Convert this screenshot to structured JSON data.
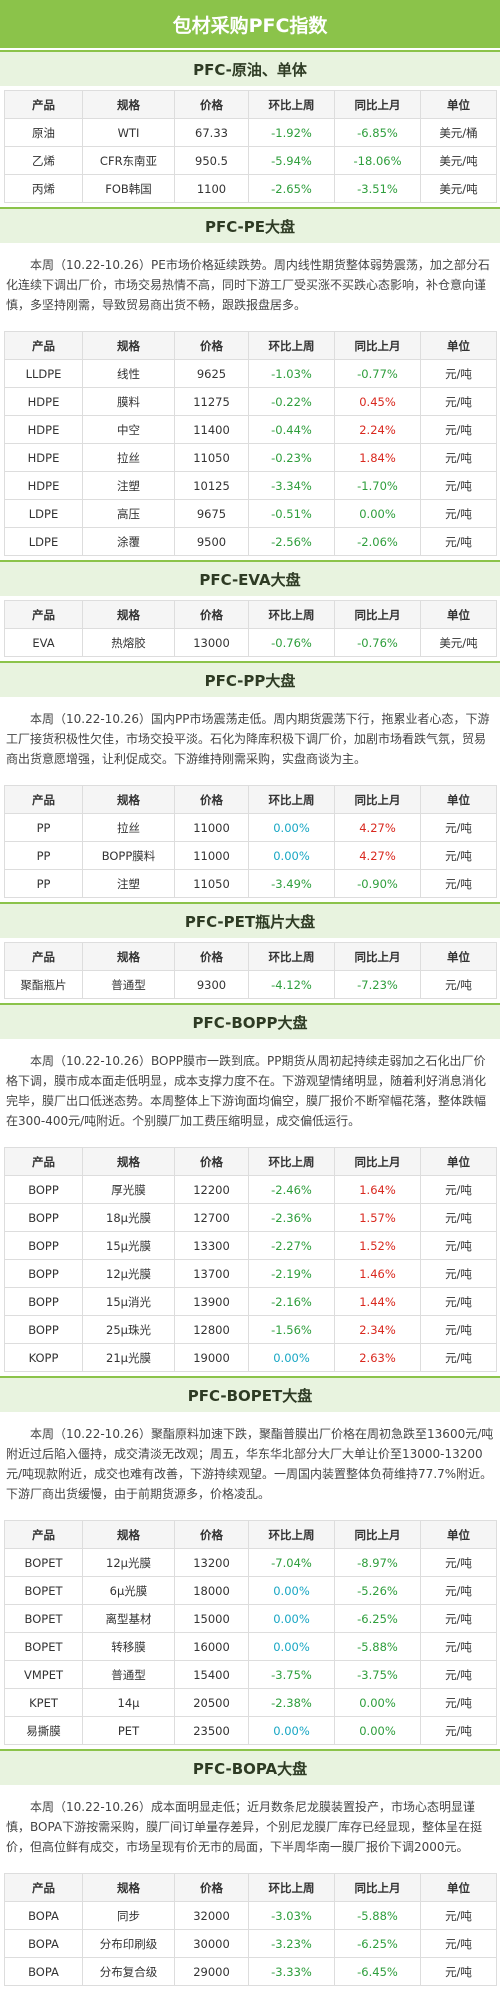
{
  "header": {
    "title": "包材采购PFC指数"
  },
  "table_columns": [
    "产品",
    "规格",
    "价格",
    "环比上周",
    "同比上月",
    "单位"
  ],
  "sections": [
    {
      "title": "PFC-原油、单体",
      "rows": [
        [
          "原油",
          "WTI",
          "67.33",
          "-1.92%",
          "-6.85%",
          "美元/桶"
        ],
        [
          "乙烯",
          "CFR东南亚",
          "950.5",
          "-5.94%",
          "-18.06%",
          "美元/吨"
        ],
        [
          "丙烯",
          "FOB韩国",
          "1100",
          "-2.65%",
          "-3.51%",
          "美元/吨"
        ]
      ]
    },
    {
      "title": "PFC-PE大盘",
      "paragraph": "本周（10.22-10.26）PE市场价格延续跌势。周内线性期货整体弱势震荡，加之部分石化连续下调出厂价，市场交易热情不高，同时下游工厂受买涨不买跌心态影响，补仓意向谨慎，多坚持刚需，导致贸易商出货不畅，跟跌报盘居多。",
      "rows": [
        [
          "LLDPE",
          "线性",
          "9625",
          "-1.03%",
          "-0.77%",
          "元/吨"
        ],
        [
          "HDPE",
          "膜料",
          "11275",
          "-0.22%",
          "0.45%",
          "元/吨"
        ],
        [
          "HDPE",
          "中空",
          "11400",
          "-0.44%",
          "2.24%",
          "元/吨"
        ],
        [
          "HDPE",
          "拉丝",
          "11050",
          "-0.23%",
          "1.84%",
          "元/吨"
        ],
        [
          "HDPE",
          "注塑",
          "10125",
          "-3.34%",
          "-1.70%",
          "元/吨"
        ],
        [
          "LDPE",
          "高压",
          "9675",
          "-0.51%",
          "0.00%",
          "元/吨"
        ],
        [
          "LDPE",
          "涂覆",
          "9500",
          "-2.56%",
          "-2.06%",
          "元/吨"
        ]
      ]
    },
    {
      "title": "PFC-EVA大盘",
      "rows": [
        [
          "EVA",
          "热熔胶",
          "13000",
          "-0.76%",
          "-0.76%",
          "美元/吨"
        ]
      ]
    },
    {
      "title": "PFC-PP大盘",
      "paragraph": "本周（10.22-10.26）国内PP市场震荡走低。周内期货震荡下行，拖累业者心态，下游工厂接货积极性欠佳，市场交投平淡。石化为降库积极下调厂价，加剧市场看跌气氛，贸易商出货意愿增强，让利促成交。下游维持刚需采购，实盘商谈为主。",
      "rows": [
        [
          "PP",
          "拉丝",
          "11000",
          "0.00%",
          "4.27%",
          "元/吨"
        ],
        [
          "PP",
          "BOPP膜料",
          "11000",
          "0.00%",
          "4.27%",
          "元/吨"
        ],
        [
          "PP",
          "注塑",
          "11050",
          "-3.49%",
          "-0.90%",
          "元/吨"
        ]
      ]
    },
    {
      "title": "PFC-PET瓶片大盘",
      "rows": [
        [
          "聚酯瓶片",
          "普通型",
          "9300",
          "-4.12%",
          "-7.23%",
          "元/吨"
        ]
      ]
    },
    {
      "title": "PFC-BOPP大盘",
      "paragraph": "本周（10.22-10.26）BOPP膜市一跌到底。PP期货从周初起持续走弱加之石化出厂价格下调，膜市成本面走低明显，成本支撑力度不在。下游观望情绪明显，随着利好消息消化完毕，膜厂出口低迷态势。本周整体上下游询面均偏空，膜厂报价不断窄幅花落，整体跌幅在300-400元/吨附近。个别膜厂加工费压缩明显，成交偏低运行。",
      "rows": [
        [
          "BOPP",
          "厚光膜",
          "12200",
          "-2.46%",
          "1.64%",
          "元/吨"
        ],
        [
          "BOPP",
          "18μ光膜",
          "12700",
          "-2.36%",
          "1.57%",
          "元/吨"
        ],
        [
          "BOPP",
          "15μ光膜",
          "13300",
          "-2.27%",
          "1.52%",
          "元/吨"
        ],
        [
          "BOPP",
          "12μ光膜",
          "13700",
          "-2.19%",
          "1.46%",
          "元/吨"
        ],
        [
          "BOPP",
          "15μ消光",
          "13900",
          "-2.16%",
          "1.44%",
          "元/吨"
        ],
        [
          "BOPP",
          "25μ珠光",
          "12800",
          "-1.56%",
          "2.34%",
          "元/吨"
        ],
        [
          "KOPP",
          "21μ光膜",
          "19000",
          "0.00%",
          "2.63%",
          "元/吨"
        ]
      ]
    },
    {
      "title": "PFC-BOPET大盘",
      "paragraph": "本周（10.22-10.26）聚酯原料加速下跌，聚酯普膜出厂价格在周初急跌至13600元/吨附近过后陷入僵持，成交清淡无改观；周五，华东华北部分大厂大单让价至13000-13200元/吨现款附近，成交也难有改善，下游持续观望。一周国内装置整体负荷维持77.7%附近。下游厂商出货缓慢，由于前期货源多，价格凌乱。",
      "rows": [
        [
          "BOPET",
          "12μ光膜",
          "13200",
          "-7.04%",
          "-8.97%",
          "元/吨"
        ],
        [
          "BOPET",
          "6μ光膜",
          "18000",
          "0.00%",
          "-5.26%",
          "元/吨"
        ],
        [
          "BOPET",
          "离型基材",
          "15000",
          "0.00%",
          "-6.25%",
          "元/吨"
        ],
        [
          "BOPET",
          "转移膜",
          "16000",
          "0.00%",
          "-5.88%",
          "元/吨"
        ],
        [
          "VMPET",
          "普通型",
          "15400",
          "-3.75%",
          "-3.75%",
          "元/吨"
        ],
        [
          "KPET",
          "14μ",
          "20500",
          "-2.38%",
          "0.00%",
          "元/吨"
        ],
        [
          "易撕膜",
          "PET",
          "23500",
          "0.00%",
          "0.00%",
          "元/吨"
        ]
      ]
    },
    {
      "title": "PFC-BOPA大盘",
      "paragraph": "本周（10.22-10.26）成本面明显走低；近月数条尼龙膜装置投产，市场心态明显谨慎，BOPA下游按需采购，膜厂间订单量存差异，个别尼龙膜厂库存已经显现，整体呈在挺价，但高位鲜有成交，市场呈现有价无市的局面，下半周华南一膜厂报价下调2000元。",
      "rows": [
        [
          "BOPA",
          "同步",
          "32000",
          "-3.03%",
          "-5.88%",
          "元/吨"
        ],
        [
          "BOPA",
          "分布印刷级",
          "30000",
          "-3.23%",
          "-6.25%",
          "元/吨"
        ],
        [
          "BOPA",
          "分布复合级",
          "29000",
          "-3.33%",
          "-6.45%",
          "元/吨"
        ]
      ]
    }
  ]
}
